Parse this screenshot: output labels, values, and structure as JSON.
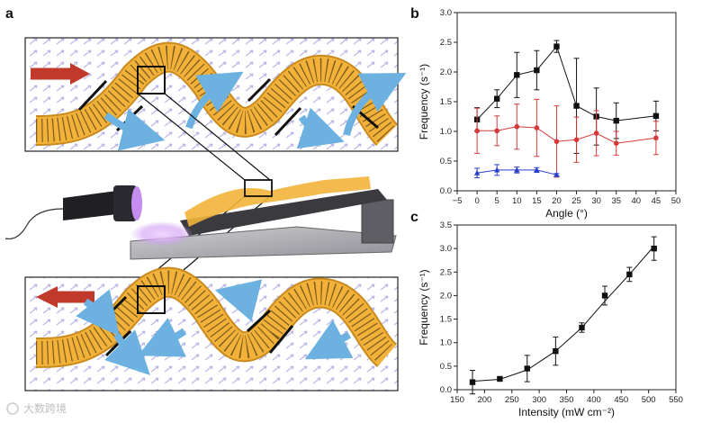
{
  "figure": {
    "panel_a_label": "a",
    "panel_b_label": "b",
    "panel_c_label": "c",
    "watermark": "大数跨境"
  },
  "colors": {
    "film": "#f2b23a",
    "film_edge": "#c98a1f",
    "arrow_big": "#c0392b",
    "flow_arrow": "#6cb1e0",
    "series_black": "#111111",
    "series_red": "#d43a3a",
    "series_blue": "#2b3fcf"
  },
  "icons": [
    "red-direction-arrow",
    "blue-flow-arrow",
    "light-source-lamp",
    "inclined-ramp"
  ],
  "chart_data": [
    {
      "panel": "b",
      "type": "line",
      "xlabel": "Angle (°)",
      "ylabel": "Frequency (s⁻¹)",
      "xlim": [
        -5,
        50
      ],
      "ylim": [
        0,
        3.0
      ],
      "xticks": [
        "−5",
        "0",
        "5",
        "10",
        "15",
        "20",
        "25",
        "30",
        "35",
        "40",
        "45",
        "50"
      ],
      "yticks": [
        "0.0",
        "0.5",
        "1.0",
        "1.5",
        "2.0",
        "2.5",
        "3.0"
      ],
      "series": [
        {
          "marker": "square",
          "points": [
            {
              "x": 0,
              "y": 1.2,
              "err": 0.2
            },
            {
              "x": 5,
              "y": 1.55,
              "err": 0.15
            },
            {
              "x": 10,
              "y": 1.95,
              "err": 0.38
            },
            {
              "x": 15,
              "y": 2.03,
              "err": 0.33
            },
            {
              "x": 20,
              "y": 2.43,
              "err": 0.1
            },
            {
              "x": 25,
              "y": 1.43,
              "err": 0.8
            },
            {
              "x": 30,
              "y": 1.25,
              "err": 0.48
            },
            {
              "x": 35,
              "y": 1.18,
              "err": 0.3
            },
            {
              "x": 45,
              "y": 1.26,
              "err": 0.25
            }
          ]
        },
        {
          "marker": "circle",
          "points": [
            {
              "x": 0,
              "y": 1.01,
              "err": 0.38
            },
            {
              "x": 5,
              "y": 1.01,
              "err": 0.25
            },
            {
              "x": 10,
              "y": 1.08,
              "err": 0.38
            },
            {
              "x": 15,
              "y": 1.06,
              "err": 0.48
            },
            {
              "x": 20,
              "y": 0.83,
              "err": 0.6
            },
            {
              "x": 25,
              "y": 0.86,
              "err": 0.38
            },
            {
              "x": 30,
              "y": 0.97,
              "err": 0.38
            },
            {
              "x": 35,
              "y": 0.8,
              "err": 0.2
            },
            {
              "x": 45,
              "y": 0.89,
              "err": 0.28
            }
          ]
        },
        {
          "marker": "triangle",
          "points": [
            {
              "x": 0,
              "y": 0.3,
              "err": 0.08
            },
            {
              "x": 5,
              "y": 0.35,
              "err": 0.09
            },
            {
              "x": 10,
              "y": 0.35,
              "err": 0.05
            },
            {
              "x": 15,
              "y": 0.35,
              "err": 0.04
            },
            {
              "x": 20,
              "y": 0.27,
              "err": 0.02
            }
          ]
        }
      ]
    },
    {
      "panel": "c",
      "type": "line",
      "xlabel": "Intensity (mW cm⁻²)",
      "ylabel": "Frequency (s⁻¹)",
      "xlim": [
        150,
        550
      ],
      "ylim": [
        0,
        3.5
      ],
      "xticks": [
        "150",
        "200",
        "250",
        "300",
        "350",
        "400",
        "450",
        "500",
        "550"
      ],
      "yticks": [
        "0.0",
        "0.5",
        "1.0",
        "1.5",
        "2.0",
        "2.5",
        "3.0",
        "3.5"
      ],
      "series": [
        {
          "marker": "square",
          "points": [
            {
              "x": 178,
              "y": 0.16,
              "err": 0.25
            },
            {
              "x": 228,
              "y": 0.23,
              "err": 0.03
            },
            {
              "x": 278,
              "y": 0.45,
              "err": 0.28
            },
            {
              "x": 330,
              "y": 0.82,
              "err": 0.3
            },
            {
              "x": 378,
              "y": 1.32,
              "err": 0.1
            },
            {
              "x": 420,
              "y": 2.0,
              "err": 0.2
            },
            {
              "x": 465,
              "y": 2.45,
              "err": 0.15
            },
            {
              "x": 510,
              "y": 3.0,
              "err": 0.25
            }
          ],
          "curve": [
            [
              178,
              0.18
            ],
            [
              228,
              0.22
            ],
            [
              278,
              0.42
            ],
            [
              330,
              0.82
            ],
            [
              378,
              1.32
            ],
            [
              420,
              1.88
            ],
            [
              465,
              2.45
            ],
            [
              510,
              3.05
            ]
          ]
        }
      ]
    }
  ]
}
